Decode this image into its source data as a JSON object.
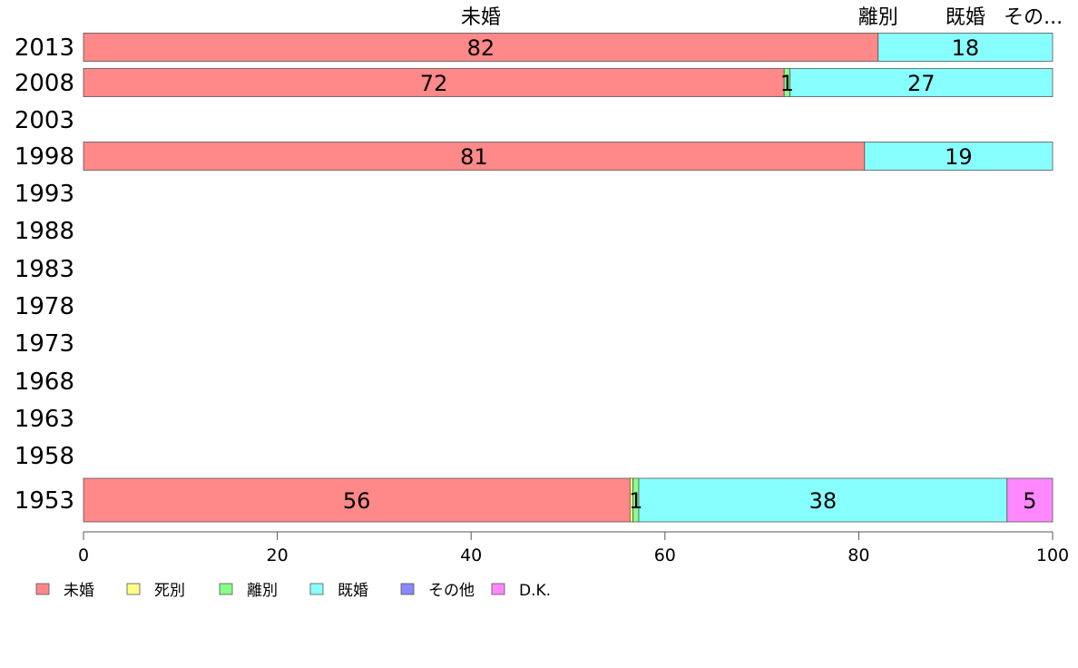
{
  "chart_data": {
    "type": "bar",
    "orientation": "horizontal",
    "stacked": true,
    "categories": [
      "2013",
      "2008",
      "2003",
      "1998",
      "1993",
      "1988",
      "1983",
      "1978",
      "1973",
      "1968",
      "1963",
      "1958",
      "1953"
    ],
    "series": [
      {
        "name": "未婚",
        "color": "#ff8888",
        "values": [
          82,
          72.3,
          null,
          80.6,
          null,
          null,
          null,
          null,
          null,
          null,
          null,
          null,
          56.4
        ]
      },
      {
        "name": "死別",
        "color": "#ffff88",
        "values": [
          0,
          0,
          null,
          0,
          null,
          null,
          null,
          null,
          null,
          null,
          null,
          null,
          0.3
        ]
      },
      {
        "name": "離別",
        "color": "#88ff88",
        "values": [
          0,
          0.6,
          null,
          0,
          null,
          null,
          null,
          null,
          null,
          null,
          null,
          null,
          0.6
        ]
      },
      {
        "name": "既婚",
        "color": "#88ffff",
        "values": [
          18,
          27.1,
          null,
          19.4,
          null,
          null,
          null,
          null,
          null,
          null,
          null,
          null,
          38
        ]
      },
      {
        "name": "その他",
        "color": "#8888ff",
        "values": [
          0,
          0,
          null,
          0,
          null,
          null,
          null,
          null,
          null,
          null,
          null,
          null,
          0
        ]
      },
      {
        "name": "D.K.",
        "color": "#ff88ff",
        "values": [
          0,
          0,
          null,
          0,
          null,
          null,
          null,
          null,
          null,
          null,
          null,
          null,
          4.7
        ]
      }
    ],
    "data_labels": [
      [
        "82",
        "",
        "",
        "18",
        "",
        ""
      ],
      [
        "72",
        "",
        "1",
        "27",
        "",
        ""
      ],
      null,
      [
        "81",
        "",
        "",
        "19",
        "",
        ""
      ],
      null,
      null,
      null,
      null,
      null,
      null,
      null,
      null,
      [
        "56",
        "",
        "1",
        "38",
        "",
        "5"
      ]
    ],
    "top_labels": [
      {
        "text": "未婚",
        "x": 41
      },
      {
        "text": "離別",
        "x": 82
      },
      {
        "text": "既婚",
        "x": 91
      },
      {
        "text": "その...",
        "x": 98
      }
    ],
    "xlim": [
      0,
      100
    ],
    "xticks": [
      0,
      20,
      40,
      60,
      80,
      100
    ],
    "legend_position": "bottom-left",
    "grid": false,
    "title": "",
    "xlabel": "",
    "ylabel": ""
  }
}
